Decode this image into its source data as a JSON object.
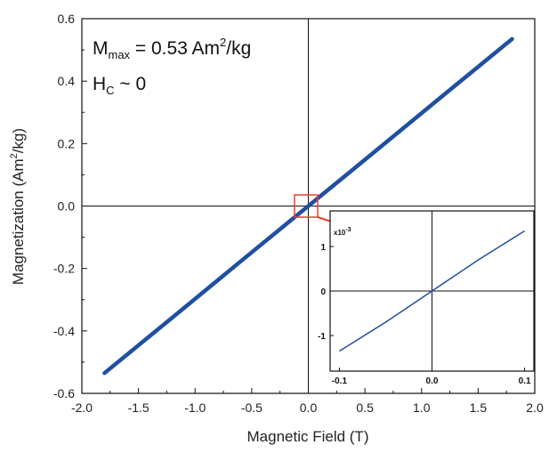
{
  "chart_data": [
    {
      "type": "line",
      "role": "main",
      "xlabel_parts": [
        "Magnetic Field (T)"
      ],
      "ylabel_parts": [
        "Magnetization (Am",
        "2",
        "/kg)"
      ],
      "xlim": [
        -2.0,
        2.0
      ],
      "ylim": [
        -0.6,
        0.6
      ],
      "x_ticks": [
        "-2.0",
        "-1.5",
        "-1.0",
        "-0.5",
        "0.0",
        "0.5",
        "1.0",
        "1.5",
        "2.0"
      ],
      "y_ticks": [
        "-0.6",
        "-0.4",
        "-0.2",
        "0.0",
        "0.2",
        "0.4",
        "0.6"
      ],
      "grid": false,
      "series": [
        {
          "x": [
            -1.8,
            -1.2,
            -0.6,
            0.0,
            0.6,
            1.2,
            1.8
          ],
          "y": [
            -0.535,
            -0.357,
            -0.178,
            0.0,
            0.178,
            0.357,
            0.535
          ],
          "color": "#1f4fa0"
        }
      ],
      "annotations": {
        "mmax": {
          "main": "M",
          "sub": "max",
          "rest": " = 0.53 Am",
          "sup": "2",
          "tail": "/kg"
        },
        "hc": {
          "main": "H",
          "sub": "C",
          "rest": " ~ 0"
        }
      },
      "zoom_box_color": "#e8412c"
    },
    {
      "type": "line",
      "role": "inset",
      "xlim": [
        -0.11,
        0.11
      ],
      "ylim": [
        -1.8,
        1.8
      ],
      "x_ticks": [
        "-0.1",
        "0.0",
        "0.1"
      ],
      "y_ticks": [
        "-1",
        "0",
        "1"
      ],
      "y_multiplier": "x10",
      "y_multiplier_exp": "-3",
      "series": [
        {
          "x": [
            -0.1,
            -0.05,
            0.0,
            0.05,
            0.1
          ],
          "y": [
            -1.35,
            -0.7,
            0.0,
            0.7,
            1.35
          ],
          "color": "#1f4fa0"
        }
      ]
    }
  ]
}
